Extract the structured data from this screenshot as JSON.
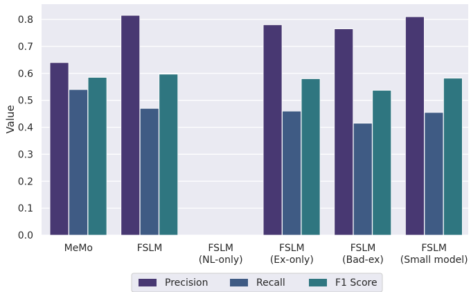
{
  "chart_data": {
    "type": "bar",
    "xlabel": "",
    "ylabel": "Value",
    "ylim": [
      0,
      0.85
    ],
    "yticks": [
      "0.0",
      "0.1",
      "0.2",
      "0.3",
      "0.4",
      "0.5",
      "0.6",
      "0.7",
      "0.8"
    ],
    "grid": true,
    "legend_position": "bottom-center",
    "categories": [
      [
        "MeMo"
      ],
      [
        "FSLM"
      ],
      [
        "FSLM",
        "(NL-only)"
      ],
      [
        "FSLM",
        "(Ex-only)"
      ],
      [
        "FSLM",
        "(Bad-ex)"
      ],
      [
        "FSLM",
        "(Small model)"
      ]
    ],
    "series": [
      {
        "name": "Precision",
        "color": "#483872",
        "values": [
          0.64,
          0.815,
          0,
          0.78,
          0.765,
          0.81
        ]
      },
      {
        "name": "Recall",
        "color": "#3f5b84",
        "values": [
          0.54,
          0.47,
          0,
          0.46,
          0.415,
          0.455
        ]
      },
      {
        "name": "F1 Score",
        "color": "#2f7680",
        "values": [
          0.585,
          0.597,
          0,
          0.58,
          0.537,
          0.582
        ]
      }
    ]
  }
}
